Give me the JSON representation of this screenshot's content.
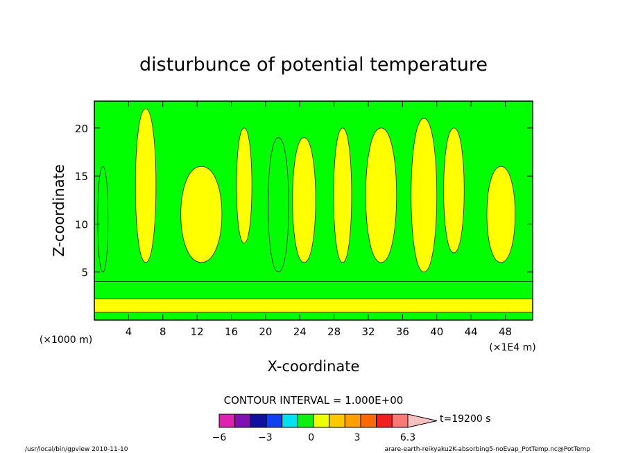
{
  "chart_data": {
    "type": "heatmap",
    "title": "disturbunce of potential temperature",
    "xlabel": "X-coordinate",
    "ylabel": "Z-coordinate",
    "x_unit_left": "(×1000 m)",
    "x_unit_right": "(×1E4 m)",
    "xlim": [
      0,
      51.2
    ],
    "ylim": [
      0,
      22.8
    ],
    "x_ticks": [
      4,
      8,
      12,
      16,
      20,
      24,
      28,
      32,
      36,
      40,
      44,
      48
    ],
    "y_ticks": [
      5,
      10,
      15,
      20
    ],
    "contour_interval_text": "CONTOUR INTERVAL = 1.000E+00",
    "time_label": "t=19200 s",
    "colorbar": {
      "min": -6,
      "max": 6.3,
      "tick_labels": [
        "−6",
        "−3",
        "0",
        "3",
        "6.3"
      ],
      "tick_values": [
        -6,
        -3,
        0,
        3,
        6.3
      ],
      "colors": [
        "#e020b0",
        "#8010b0",
        "#1010a0",
        "#1040f0",
        "#00e0f0",
        "#10f010",
        "#f0ff00",
        "#ffc800",
        "#ffa000",
        "#ff6a00",
        "#f02020",
        "#f87878"
      ],
      "extend_color": "#f8c0c0"
    },
    "fill_colors": {
      "zero_to_one": "#00ff00",
      "one_to_two": "#ffff00"
    },
    "bands": [
      {
        "from": 0.0,
        "to": 0.8,
        "value": "0 to 1"
      },
      {
        "from": 0.8,
        "to": 2.2,
        "value": "1 to 2"
      },
      {
        "from": 2.2,
        "to": 4.0,
        "value": "0 to 1"
      }
    ],
    "plumes": [
      {
        "x": 1.0,
        "w": 0.8,
        "bottom": 5,
        "top": 16,
        "value": "0 to 1"
      },
      {
        "x": 6.0,
        "w": 1.6,
        "bottom": 6,
        "top": 22,
        "value": "1 to 2"
      },
      {
        "x": 12.5,
        "w": 3.2,
        "bottom": 6,
        "top": 16,
        "value": "1 to 2"
      },
      {
        "x": 17.5,
        "w": 1.2,
        "bottom": 8,
        "top": 20,
        "value": "1 to 2"
      },
      {
        "x": 21.5,
        "w": 1.6,
        "bottom": 5,
        "top": 19,
        "value": "0 to 1"
      },
      {
        "x": 24.5,
        "w": 1.8,
        "bottom": 6,
        "top": 19,
        "value": "1 to 2"
      },
      {
        "x": 29.0,
        "w": 1.4,
        "bottom": 6,
        "top": 20,
        "value": "1 to 2"
      },
      {
        "x": 33.5,
        "w": 2.4,
        "bottom": 6,
        "top": 20,
        "value": "1 to 2"
      },
      {
        "x": 38.5,
        "w": 2.0,
        "bottom": 5,
        "top": 21,
        "value": "1 to 2"
      },
      {
        "x": 42.0,
        "w": 1.6,
        "bottom": 7,
        "top": 20,
        "value": "1 to 2"
      },
      {
        "x": 47.5,
        "w": 2.2,
        "bottom": 6,
        "top": 16,
        "value": "1 to 2"
      }
    ]
  },
  "footer": {
    "left": "/usr/local/bin/gpview  2010-11-10",
    "right": "arare-earth-reikyaku2K-absorbing5-noEvap_PotTemp.nc@PotTemp"
  }
}
